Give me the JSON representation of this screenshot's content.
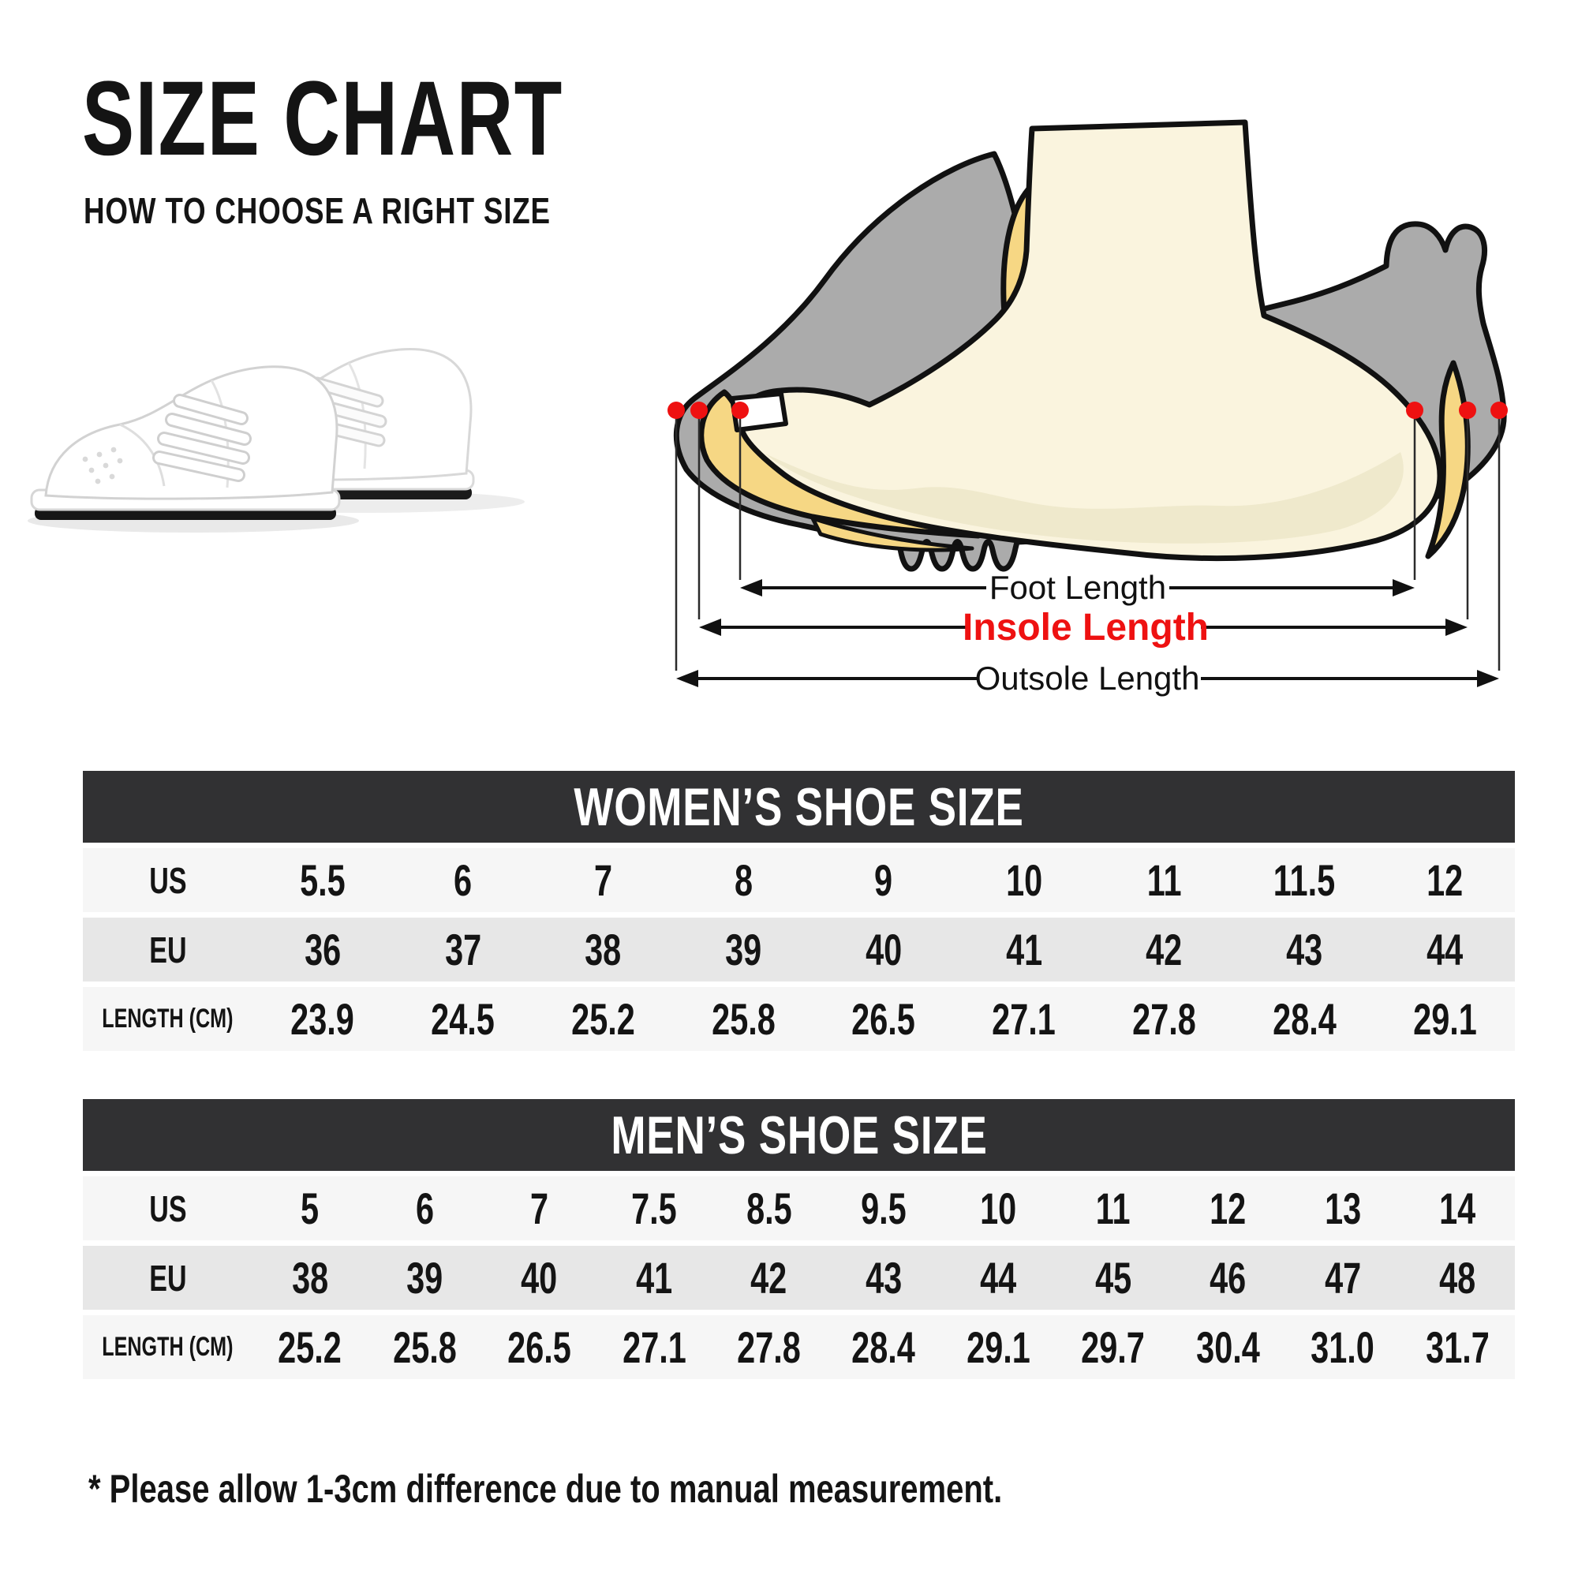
{
  "title": "SIZE CHART",
  "subtitle": "HOW TO CHOOSE A RIGHT SIZE",
  "note": "* Please allow 1-3cm difference due to manual measurement.",
  "colors": {
    "header_bar": "#313133",
    "row_light": "#f6f6f6",
    "row_gray": "#e7e7e7",
    "accent_red": "#ee1111",
    "shoe_gray": "#ababab",
    "insole_yellow": "#f6d784",
    "foot_cream": "#faf4de",
    "sole_shade": "#efe9cc",
    "outline_black": "#111111"
  },
  "diagram": {
    "foot_length_label": "Foot Length",
    "insole_length_label": "Insole Length",
    "outsole_length_label": "Outsole Length"
  },
  "tables": [
    {
      "id": "women",
      "title": "WOMEN’S SHOE SIZE",
      "rows": [
        {
          "label": "US",
          "values": [
            "5.5",
            "6",
            "7",
            "8",
            "9",
            "10",
            "11",
            "11.5",
            "12"
          ]
        },
        {
          "label": "EU",
          "values": [
            "36",
            "37",
            "38",
            "39",
            "40",
            "41",
            "42",
            "43",
            "44"
          ]
        },
        {
          "label": "LENGTH (CM)",
          "values": [
            "23.9",
            "24.5",
            "25.2",
            "25.8",
            "26.5",
            "27.1",
            "27.8",
            "28.4",
            "29.1"
          ]
        }
      ]
    },
    {
      "id": "men",
      "title": "MEN’S SHOE SIZE",
      "rows": [
        {
          "label": "US",
          "values": [
            "5",
            "6",
            "7",
            "7.5",
            "8.5",
            "9.5",
            "10",
            "11",
            "12",
            "13",
            "14"
          ]
        },
        {
          "label": "EU",
          "values": [
            "38",
            "39",
            "40",
            "41",
            "42",
            "43",
            "44",
            "45",
            "46",
            "47",
            "48"
          ]
        },
        {
          "label": "LENGTH (CM)",
          "values": [
            "25.2",
            "25.8",
            "26.5",
            "27.1",
            "27.8",
            "28.4",
            "29.1",
            "29.7",
            "30.4",
            "31.0",
            "31.7"
          ]
        }
      ]
    }
  ]
}
